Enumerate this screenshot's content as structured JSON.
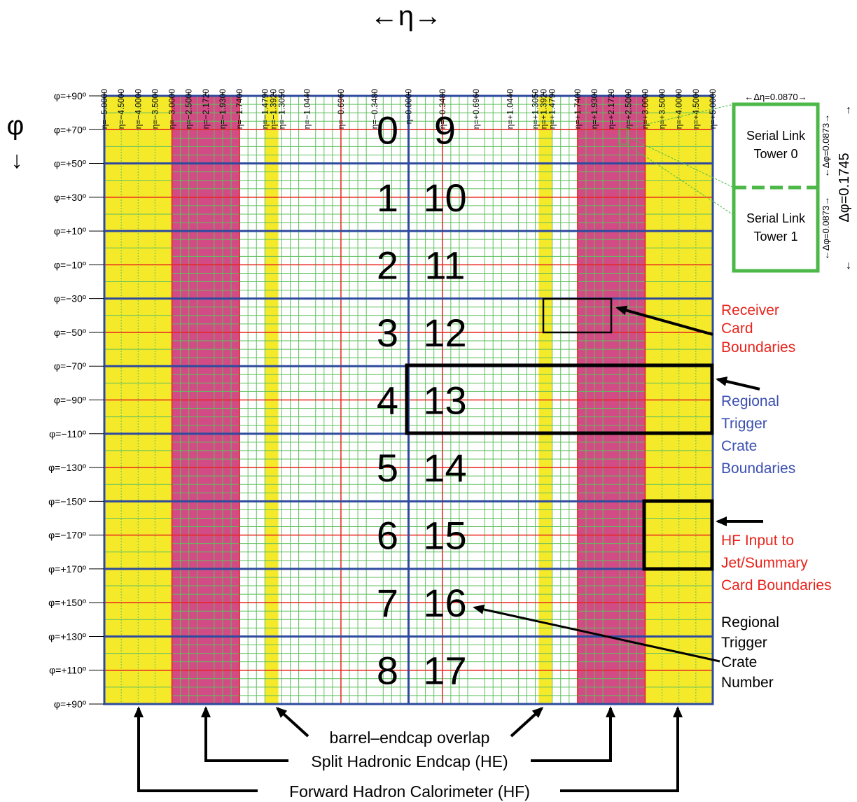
{
  "axes": {
    "eta_label": "←η→",
    "phi_label": "φ",
    "phi_arrow": "↓",
    "eta_ticks": [
      "η=−5.0000",
      "η=−4.5000",
      "η=−4.0000",
      "η=−3.5000",
      "η=−3.0000",
      "η=−2.5000",
      "η=−2.1720",
      "η=−1.9300",
      "η=−1.7400",
      "η=−1.4790",
      "η=−1.3920",
      "η=−1.3050",
      "η=−1.0440",
      "η=−0.6960",
      "η=−0.3480",
      "η=0.0000",
      "η=+0.3480",
      "η=+0.6960",
      "η=+1.0440",
      "η=+1.3050",
      "η=+1.3920",
      "η=+1.4790",
      "η=+1.7400",
      "η=+1.9300",
      "η=+2.1720",
      "η=+2.5000",
      "η=+3.0000",
      "η=+3.5000",
      "η=+4.0000",
      "η=+4.5000",
      "η=+5.0000"
    ],
    "phi_ticks": [
      "φ=+90º",
      "φ=+70º",
      "φ=+50º",
      "φ=+30º",
      "φ=+10º",
      "φ=−10º",
      "φ=−30º",
      "φ=−50º",
      "φ=−70º",
      "φ=−90º",
      "φ=−110º",
      "φ=−130º",
      "φ=−150º",
      "φ=−170º",
      "φ=+170º",
      "φ=+150º",
      "φ=+130º",
      "φ=+110º",
      "φ=+90º"
    ]
  },
  "crates": {
    "left": [
      "0",
      "1",
      "2",
      "3",
      "4",
      "5",
      "6",
      "7",
      "8"
    ],
    "right": [
      "9",
      "10",
      "11",
      "12",
      "13",
      "14",
      "15",
      "16",
      "17"
    ]
  },
  "inset": {
    "delta_eta": "←Δη=0.0870→",
    "tower0": [
      "Serial Link",
      "Tower 0"
    ],
    "tower1": [
      "Serial Link",
      "Tower 1"
    ],
    "dphi_a": "←Δφ=0.0873→",
    "dphi_b": "←Δφ=0.0873→",
    "dphi_total": "Δφ=0.1745"
  },
  "annotations": {
    "receiver": [
      "Receiver",
      "Card",
      "Boundaries"
    ],
    "regional": [
      "Regional",
      "Trigger",
      "Crate",
      "Boundaries"
    ],
    "hf_input": [
      "HF Input to",
      "Jet/Summary",
      "Card Boundaries"
    ],
    "crate_number": [
      "Regional",
      "Trigger",
      "Crate",
      "Number"
    ]
  },
  "bottom_labels": {
    "overlap": "barrel–endcap overlap",
    "he": "Split Hadronic Endcap (HE)",
    "hf": "Forward Hadron Calorimeter (HF)"
  },
  "colors": {
    "yellow": "#f5ea2a",
    "magenta": "#d24b84",
    "green_grid": "#5fbf5f",
    "red_line": "#e8241c",
    "blue_line": "#2e4a9e",
    "red_text": "#e8241c",
    "blue_text": "#3b4fb0",
    "inset_green": "#4cb848"
  }
}
